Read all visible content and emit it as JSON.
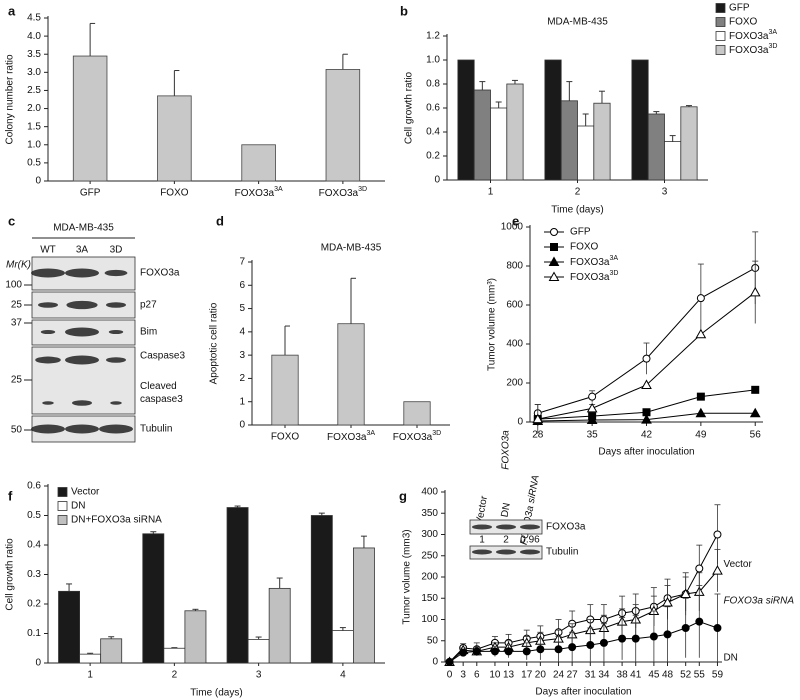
{
  "chart_data": [
    {
      "type": "bar",
      "panel": "a",
      "ylabel": "Colony number ratio",
      "categories": [
        "GFP",
        "FOXO",
        "FOXO3a3A",
        "FOXO3a3D"
      ],
      "values": [
        3.45,
        2.35,
        1.0,
        3.08
      ],
      "errors": [
        0.9,
        0.7,
        null,
        0.42
      ],
      "color": "#c8c8c8",
      "ylim": [
        0,
        4.5
      ],
      "yticks": [
        0,
        0.5,
        {
          "value": 1,
          "label": "1.0"
        },
        1.5,
        {
          "value": 2,
          "label": "2.0"
        },
        2.5,
        {
          "value": 3,
          "label": "3.0"
        },
        3.5,
        {
          "value": 4,
          "label": "4.0"
        },
        4.5
      ]
    },
    {
      "type": "groupedbar",
      "panel": "b",
      "title": "MDA-MB-435",
      "xlabel": "Time (days)",
      "ylabel": "Cell growth ratio",
      "categories": [
        "1",
        "2",
        "3"
      ],
      "legend": "outside-right",
      "series": [
        {
          "name": "GFP",
          "color": "#1a1a1a",
          "values": [
            1.0,
            1.0,
            1.0
          ],
          "errors": [
            null,
            null,
            null
          ]
        },
        {
          "name": "FOXO",
          "color": "#808080",
          "values": [
            0.75,
            0.66,
            0.55
          ],
          "errors": [
            0.07,
            0.16,
            0.02
          ]
        },
        {
          "name": "FOXO3a3A",
          "color": "#ffffff",
          "values": [
            0.6,
            0.45,
            0.32
          ],
          "errors": [
            0.05,
            0.1,
            0.05
          ]
        },
        {
          "name": "FOXO3a3D",
          "color": "#c8c8c8",
          "values": [
            0.8,
            0.64,
            0.61
          ],
          "errors": [
            0.03,
            0.1,
            0.01
          ]
        }
      ],
      "ylim": [
        0,
        1.2
      ],
      "yticks": [
        0,
        0.2,
        0.4,
        0.6,
        0.8,
        {
          "value": 1,
          "label": "1.0"
        },
        1.2
      ]
    },
    {
      "type": "bar",
      "panel": "d",
      "title": "MDA-MB-435",
      "ylabel": "Apoptotic cell ratio",
      "categories": [
        "FOXO",
        "FOXO3a3A",
        "FOXO3a3D"
      ],
      "values": [
        3.0,
        4.35,
        1.0
      ],
      "errors": [
        1.25,
        1.95,
        null
      ],
      "color": "#c8c8c8",
      "ylim": [
        0,
        7
      ],
      "yticks": [
        0,
        1,
        2,
        3,
        4,
        5,
        6,
        7
      ]
    },
    {
      "type": "line",
      "panel": "e",
      "xlabel": "Days after inoculation",
      "ylabel": "Tumor volume (mm³)",
      "annotation": "FOXO3a",
      "legend": "upper-left",
      "x": [
        28,
        35,
        42,
        49,
        56
      ],
      "xlim": [
        27,
        57
      ],
      "xticks": [
        28,
        35,
        42,
        49,
        56
      ],
      "ylim": [
        0,
        1000
      ],
      "yticks": [
        0,
        200,
        400,
        600,
        800,
        1000
      ],
      "series": [
        {
          "name": "GFP",
          "color": "#000000",
          "marker": "open-circle",
          "values": [
            45,
            130,
            325,
            635,
            790
          ],
          "errors": [
            45,
            30,
            80,
            175,
            185
          ]
        },
        {
          "name": "FOXO",
          "color": "#000000",
          "marker": "filled-square",
          "values": [
            15,
            30,
            50,
            130,
            165
          ],
          "errors": [
            75,
            null,
            null,
            null,
            15
          ]
        },
        {
          "name": "FOXO3a3A",
          "color": "#000000",
          "marker": "filled-triangle",
          "values": [
            5,
            10,
            12,
            45,
            45
          ],
          "errors": [
            null,
            null,
            null,
            null,
            null
          ]
        },
        {
          "name": "FOXO3a3D",
          "color": "#000000",
          "marker": "open-triangle",
          "values": [
            15,
            70,
            190,
            450,
            665
          ],
          "errors": [
            null,
            20,
            null,
            null,
            160
          ]
        }
      ]
    },
    {
      "type": "groupedbar",
      "panel": "f",
      "xlabel": "Time (days)",
      "ylabel": "Cell growth ratio",
      "categories": [
        "1",
        "2",
        "3",
        "4"
      ],
      "legend": "upper-left",
      "series": [
        {
          "name": "Vector",
          "color": "#1a1a1a",
          "values": [
            0.243,
            0.438,
            0.527,
            0.5
          ],
          "errors": [
            0.025,
            0.007,
            0.005,
            0.008
          ]
        },
        {
          "name": "DN",
          "color": "#ffffff",
          "values": [
            0.03,
            0.05,
            0.08,
            0.11
          ],
          "errors": [
            0.003,
            0.002,
            0.008,
            0.01
          ]
        },
        {
          "name": "DN+FOXO3a siRNA",
          "color": "#c0c0c0",
          "values": [
            0.082,
            0.177,
            0.253,
            0.39
          ],
          "errors": [
            0.007,
            0.005,
            0.035,
            0.04
          ]
        }
      ],
      "ylim": [
        0,
        0.6
      ],
      "yticks": [
        0,
        0.1,
        0.2,
        0.3,
        0.4,
        0.5,
        0.6
      ]
    },
    {
      "type": "line",
      "panel": "g",
      "xlabel": "Days after inoculation",
      "ylabel": "Tumor volume (mm3)",
      "legend": "inline",
      "x": [
        0,
        3,
        6,
        10,
        13,
        17,
        20,
        24,
        27,
        31,
        34,
        38,
        41,
        45,
        48,
        52,
        55,
        59
      ],
      "xlim": [
        -1,
        60
      ],
      "xticks": [
        0,
        3,
        6,
        10,
        13,
        17,
        20,
        24,
        27,
        31,
        34,
        38,
        41,
        45,
        48,
        52,
        55,
        59
      ],
      "ylim": [
        0,
        400
      ],
      "yticks": [
        0,
        50,
        100,
        150,
        200,
        250,
        300,
        350,
        400
      ],
      "series": [
        {
          "name": "Vector",
          "color": "#000000",
          "marker": "open-circle",
          "values": [
            0,
            33,
            30,
            45,
            45,
            55,
            60,
            70,
            90,
            100,
            100,
            115,
            120,
            130,
            150,
            160,
            220,
            300
          ],
          "errors": [
            0,
            10,
            15,
            15,
            20,
            20,
            25,
            30,
            30,
            35,
            35,
            40,
            40,
            45,
            45,
            50,
            55,
            70
          ]
        },
        {
          "name": "FOXO3a siRNA",
          "color": "#000000",
          "marker": "open-triangle",
          "values": [
            0,
            28,
            25,
            35,
            35,
            45,
            50,
            55,
            65,
            75,
            80,
            95,
            100,
            120,
            140,
            160,
            165,
            215
          ],
          "errors": [
            0,
            5,
            10,
            10,
            15,
            15,
            20,
            20,
            25,
            25,
            30,
            30,
            35,
            35,
            40,
            40,
            45,
            50
          ]
        },
        {
          "name": "DN",
          "color": "#000000",
          "marker": "filled-circle",
          "values": [
            0,
            22,
            25,
            25,
            25,
            25,
            30,
            30,
            35,
            40,
            45,
            55,
            55,
            60,
            65,
            80,
            95,
            80
          ],
          "errors": [
            0,
            8,
            10,
            12,
            15,
            20,
            25,
            30,
            35,
            40,
            45,
            50,
            55,
            60,
            65,
            70,
            85,
            80
          ]
        }
      ],
      "inset": {
        "lanes": [
          "Vector",
          "DN",
          "FOXO3a siRNA"
        ],
        "bands": [
          "FOXO3a",
          "Tubulin"
        ],
        "ratios": [
          "1",
          "2",
          "0.96"
        ]
      }
    }
  ],
  "blot": {
    "panel": "c",
    "title": "MDA-MB-435",
    "lanes": [
      "WT",
      "3A",
      "3D"
    ],
    "mr_label": "Mr(K)",
    "markers": [
      "100",
      "25",
      "37",
      "25",
      "50"
    ],
    "bands": [
      "FOXO3a",
      "p27",
      "Bim",
      "Caspase3",
      "Cleaved caspase3",
      "Tubulin"
    ]
  }
}
